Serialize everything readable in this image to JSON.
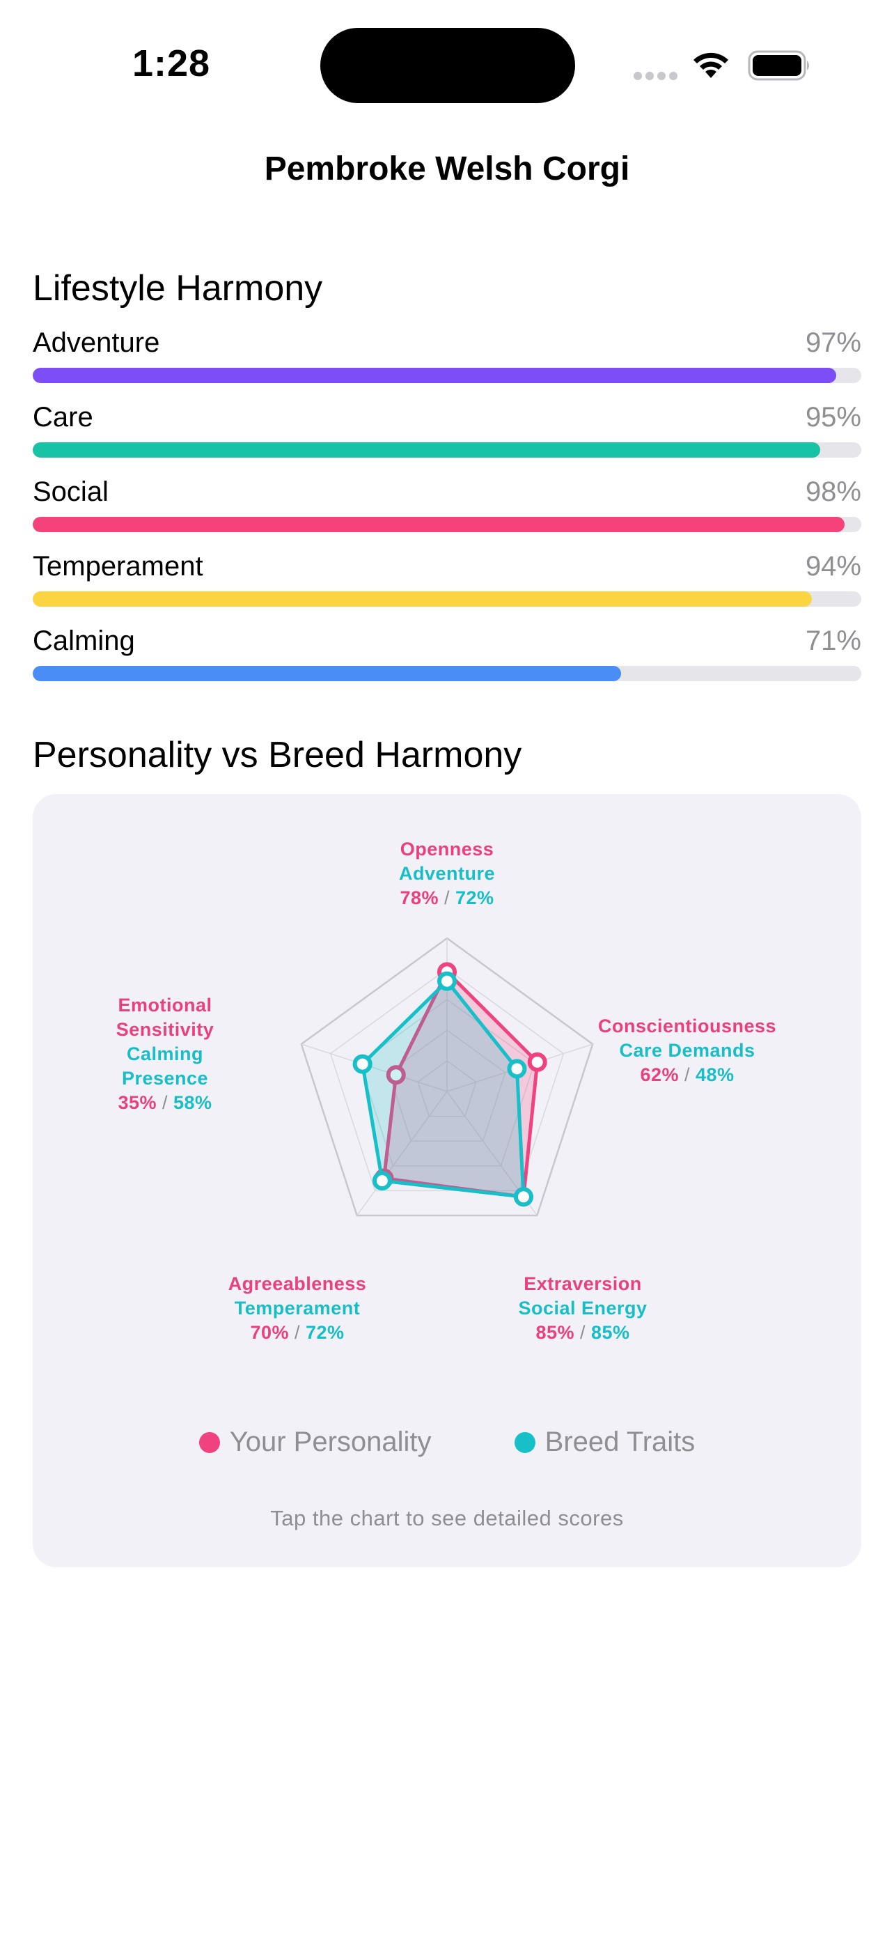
{
  "status_bar": {
    "time": "1:28"
  },
  "nav": {
    "title": "Pembroke Welsh Corgi"
  },
  "lifestyle": {
    "title": "Lifestyle Harmony",
    "bars": [
      {
        "label": "Adventure",
        "value_text": "97%",
        "value": 97,
        "color": "#7d4ef5"
      },
      {
        "label": "Care",
        "value_text": "95%",
        "value": 95,
        "color": "#18c2a4"
      },
      {
        "label": "Social",
        "value_text": "98%",
        "value": 98,
        "color": "#f6427a"
      },
      {
        "label": "Temperament",
        "value_text": "94%",
        "value": 94,
        "color": "#fad541"
      },
      {
        "label": "Calming",
        "value_text": "71%",
        "value": 71,
        "color": "#4a8df7"
      }
    ]
  },
  "harmony": {
    "title": "Personality vs Breed Harmony",
    "legend": {
      "personality": "Your Personality",
      "breed": "Breed Traits"
    },
    "hint": "Tap the chart to see detailed scores",
    "colors": {
      "personality": "#f0427f",
      "breed": "#17bfc8"
    }
  },
  "chart_data": {
    "type": "radar",
    "max": 100,
    "axes": [
      {
        "trait": "Openness",
        "breed_trait": "Adventure",
        "personality": 78,
        "breed": 72,
        "personality_text": "78%",
        "breed_text": "72%"
      },
      {
        "trait": "Conscientiousness",
        "breed_trait": "Care Demands",
        "personality": 62,
        "breed": 48,
        "personality_text": "62%",
        "breed_text": "48%"
      },
      {
        "trait": "Extraversion",
        "breed_trait": "Social Energy",
        "personality": 85,
        "breed": 85,
        "personality_text": "85%",
        "breed_text": "85%"
      },
      {
        "trait": "Agreeableness",
        "breed_trait": "Temperament",
        "personality": 70,
        "breed": 72,
        "personality_text": "70%",
        "breed_text": "72%"
      },
      {
        "trait": "Emotional Sensitivity",
        "breed_trait": "Calming Presence",
        "personality": 35,
        "breed": 58,
        "personality_text": "35%",
        "breed_text": "58%"
      }
    ],
    "series": [
      {
        "name": "Your Personality",
        "key": "personality"
      },
      {
        "name": "Breed Traits",
        "key": "breed"
      }
    ]
  }
}
